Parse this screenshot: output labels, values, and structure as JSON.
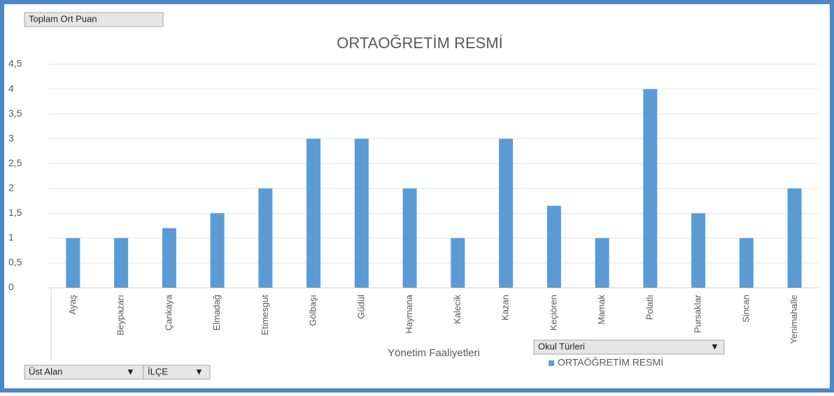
{
  "chart_data": {
    "type": "bar",
    "title": "ORTAOĞRETİM RESMİ",
    "x_label": "Yönetim Faaliyetleri",
    "categories": [
      "Ayaş",
      "Beypazarı",
      "Çankaya",
      "Elmadağ",
      "Etimesgut",
      "Gölbaşı",
      "Güdül",
      "Haymana",
      "Kalecik",
      "Kazan",
      "Keçiören",
      "Mamak",
      "Polatlı",
      "Pursaklar",
      "Sincan",
      "Yenimahalle"
    ],
    "series": [
      {
        "name": "ORTAÖĞRETİM RESMİ",
        "color": "#5b9bd5",
        "values": [
          1,
          1,
          1.2,
          1.5,
          2,
          3,
          3,
          2,
          1,
          3,
          1.65,
          1,
          4,
          1.5,
          1,
          2
        ]
      }
    ],
    "ylim": [
      0,
      4.5
    ],
    "yticks": [
      0,
      {
        "value": 0.5,
        "label": "0,5"
      },
      1,
      {
        "value": 1.5,
        "label": "1,5"
      },
      2,
      {
        "value": 2.5,
        "label": "2,5"
      },
      3,
      {
        "value": 3.5,
        "label": "3,5"
      },
      4,
      {
        "value": 4.5,
        "label": "4,5"
      }
    ],
    "grid": true
  },
  "field_buttons": {
    "values": "Toplam Ort Puan",
    "legend": "Okul Türleri",
    "axis": [
      "Üst Alan",
      "İLÇE"
    ]
  }
}
